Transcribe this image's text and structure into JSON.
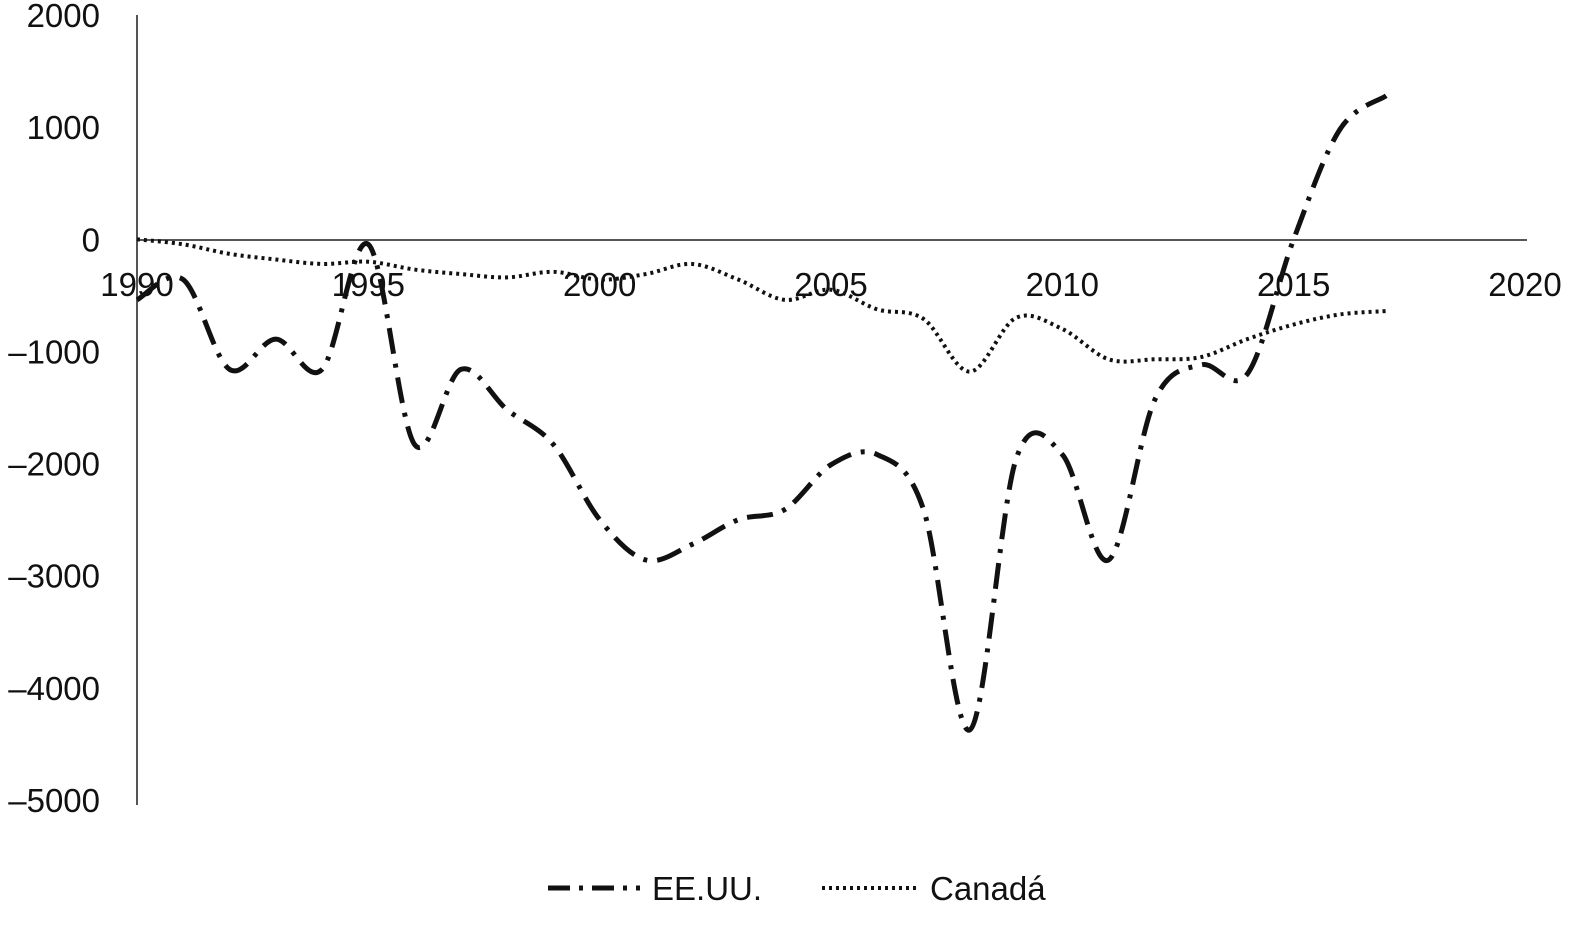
{
  "chart_data": {
    "type": "line",
    "title": "",
    "xlabel": "",
    "ylabel": "",
    "xlim": [
      1990,
      2020
    ],
    "ylim": [
      -5000,
      2000
    ],
    "x_ticks": [
      "1990",
      "1995",
      "2000",
      "2005",
      "2010",
      "2015",
      "2020"
    ],
    "y_ticks": [
      "2000",
      "1000",
      "0",
      "–1000",
      "–2000",
      "–3000",
      "–4000",
      "–5000"
    ],
    "grid": false,
    "legend_position": "bottom",
    "x": [
      1990,
      1991,
      1992,
      1993,
      1994,
      1995,
      1996,
      1997,
      1998,
      1999,
      2000,
      2001,
      2002,
      2003,
      2004,
      2005,
      2006,
      2007,
      2008,
      2009,
      2010,
      2011,
      2012,
      2013,
      2014,
      2015,
      2016,
      2017
    ],
    "series": [
      {
        "name": "EE.UU.",
        "style": "dash-dot",
        "color": "#111111",
        "values": [
          -540,
          -360,
          -1160,
          -890,
          -1160,
          -45,
          -1830,
          -1160,
          -1520,
          -1830,
          -2500,
          -2860,
          -2720,
          -2500,
          -2410,
          -2010,
          -1920,
          -2410,
          -4375,
          -1960,
          -1920,
          -2860,
          -1430,
          -1120,
          -1200,
          0,
          980,
          1280
        ]
      },
      {
        "name": "Canadá",
        "style": "dotted",
        "color": "#111111",
        "values": [
          0,
          -45,
          -130,
          -180,
          -220,
          -200,
          -270,
          -310,
          -340,
          -290,
          -360,
          -310,
          -220,
          -360,
          -540,
          -450,
          -625,
          -710,
          -1180,
          -700,
          -800,
          -1070,
          -1070,
          -1050,
          -890,
          -760,
          -670,
          -640
        ]
      }
    ]
  }
}
